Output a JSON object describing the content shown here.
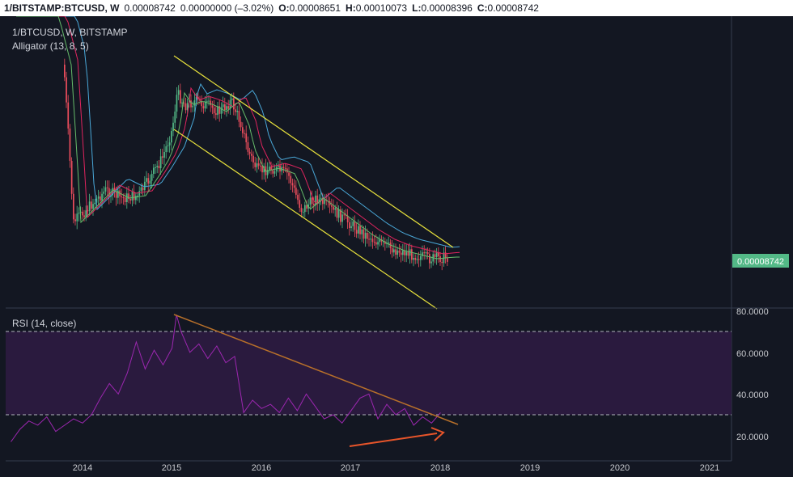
{
  "header": {
    "symbol": "1/BITSTAMP:BTCUSD, W",
    "last": "0.00008742",
    "change": "0.00000000 (–3.02%)",
    "open_label": "O:",
    "open": "0.00008651",
    "high_label": "H:",
    "high": "0.00010073",
    "low_label": "L:",
    "low": "0.00008396",
    "close_label": "C:",
    "close": "0.00008742"
  },
  "main_pane": {
    "symbol_label": "1/BTCUSD, W, BITSTAMP",
    "indicator_label": "Alligator (13, 8, 5)",
    "price_badge": "0.00008742"
  },
  "rsi_pane": {
    "label": "RSI (14, close)",
    "y_ticks": [
      "80.0000",
      "60.0000",
      "40.0000",
      "20.0000"
    ]
  },
  "x_axis": {
    "ticks": [
      "2014",
      "2015",
      "2016",
      "2017",
      "2018",
      "2019",
      "2020",
      "2021"
    ]
  },
  "colors": {
    "background": "#131722",
    "bull": "#53b987",
    "bear": "#eb4d5c",
    "jaw": "#4aa8d8",
    "teeth": "#e0245e",
    "lips": "#66bb6a",
    "channel": "#e8e23c",
    "rsi_line": "#9c27b0",
    "rsi_band": "#2a1a3e",
    "trendline_down": "#b8702a",
    "divergence_arrow": "#e8552a",
    "price_badge": "#53b987"
  },
  "chart_data": {
    "type": "candlestick",
    "x_range": [
      2013.2,
      2021.2
    ],
    "price_scale": "log",
    "annotations": [
      "descending channel (two parallel yellow lines)",
      "RSI descending trendline",
      "RSI rising divergence arrow"
    ],
    "rsi": {
      "name": "RSI (14, close)",
      "ylim": [
        10,
        82
      ],
      "upper_band": 70,
      "lower_band": 30,
      "x": [
        2013.2,
        2013.3,
        2013.4,
        2013.5,
        2013.6,
        2013.7,
        2013.8,
        2013.9,
        2014.0,
        2014.1,
        2014.2,
        2014.3,
        2014.4,
        2014.5,
        2014.6,
        2014.7,
        2014.8,
        2014.9,
        2015.0,
        2015.05,
        2015.1,
        2015.2,
        2015.3,
        2015.4,
        2015.5,
        2015.6,
        2015.7,
        2015.8,
        2015.9,
        2016.0,
        2016.1,
        2016.2,
        2016.3,
        2016.4,
        2016.5,
        2016.6,
        2016.7,
        2016.8,
        2016.9,
        2017.0,
        2017.1,
        2017.2,
        2017.3,
        2017.4,
        2017.5,
        2017.6,
        2017.7,
        2017.8,
        2017.9,
        2018.0
      ],
      "values": [
        17,
        23,
        27,
        25,
        29,
        22,
        25,
        28,
        26,
        30,
        38,
        45,
        40,
        50,
        65,
        52,
        61,
        54,
        62,
        78,
        70,
        60,
        64,
        57,
        63,
        55,
        58,
        31,
        37,
        33,
        35,
        31,
        38,
        32,
        40,
        34,
        28,
        30,
        26,
        32,
        38,
        40,
        28,
        35,
        30,
        33,
        25,
        29,
        26,
        31
      ]
    }
  }
}
